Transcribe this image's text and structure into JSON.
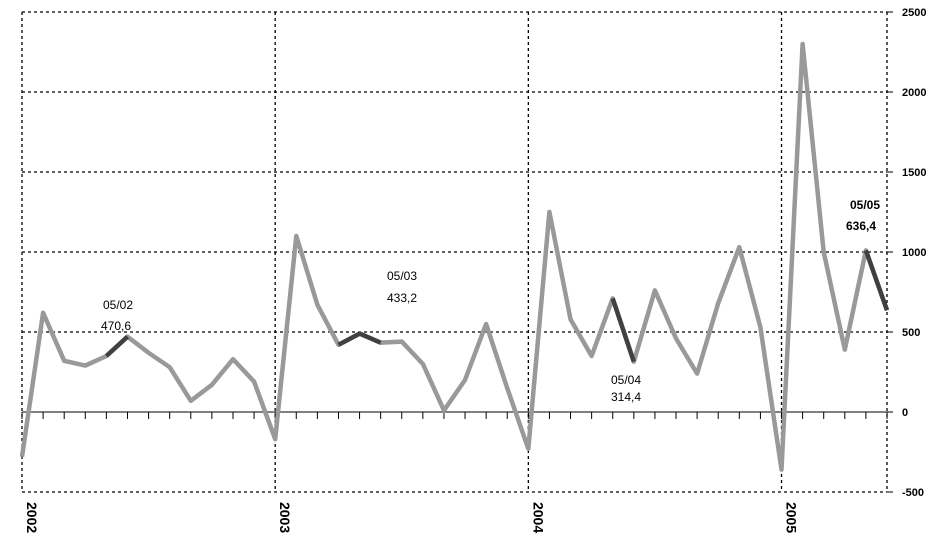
{
  "chart_data": {
    "type": "line",
    "title": "",
    "xlabel": "",
    "ylabel": "",
    "ylim": [
      -500,
      2500
    ],
    "yticks": [
      -500,
      0,
      500,
      1000,
      1500,
      2000,
      2500
    ],
    "ytick_labels": [
      "-500",
      "0",
      "500",
      "1000",
      "1500",
      "2000",
      "2500"
    ],
    "year_labels": [
      "2002",
      "2003",
      "2004",
      "2005"
    ],
    "grid": true,
    "y_axis_position": "right",
    "colors": {
      "line": "#999999",
      "highlight": "#404040",
      "grid": "#000000"
    },
    "series": [
      {
        "values": [
          -280,
          620,
          320,
          290,
          350,
          470.6,
          370,
          280,
          70,
          170,
          330,
          190,
          -170,
          1100,
          670,
          420,
          490,
          433.2,
          440,
          300,
          10,
          200,
          550,
          150,
          -230,
          1250,
          580,
          350,
          710,
          314.4,
          760,
          460,
          240,
          680,
          1030,
          530,
          -360,
          2300,
          1000,
          390,
          1010,
          636.4
        ]
      }
    ],
    "highlight_segments": [
      [
        4,
        5
      ],
      [
        15,
        17
      ],
      [
        28,
        29
      ],
      [
        40,
        41
      ]
    ],
    "annotations": [
      {
        "date": "05/02",
        "value": "470,6"
      },
      {
        "date": "05/03",
        "value": "433,2"
      },
      {
        "date": "05/04",
        "value": "314,4"
      },
      {
        "date": "05/05",
        "value": "636,4"
      }
    ]
  }
}
